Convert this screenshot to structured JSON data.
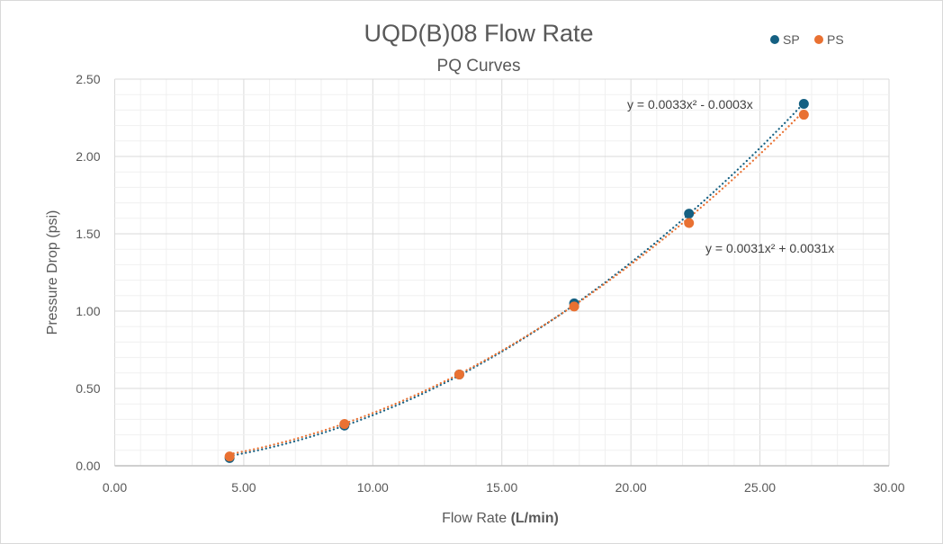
{
  "chart_data": {
    "type": "scatter",
    "title": "UQD(B)08 Flow Rate",
    "subtitle": "PQ Curves",
    "xlabel_prefix": "Flow Rate ",
    "xlabel_unit": "(L/min)",
    "ylabel": "Pressure Drop (psi)",
    "xlim": [
      0,
      30
    ],
    "ylim": [
      0,
      2.5
    ],
    "x_ticks": [
      "0.00",
      "5.00",
      "10.00",
      "15.00",
      "20.00",
      "25.00",
      "30.00"
    ],
    "y_ticks": [
      "0.00",
      "0.50",
      "1.00",
      "1.50",
      "2.00",
      "2.50"
    ],
    "x_tick_values": [
      0,
      5,
      10,
      15,
      20,
      25,
      30
    ],
    "y_tick_values": [
      0,
      0.5,
      1,
      1.5,
      2,
      2.5
    ],
    "minor_x_step": 1,
    "minor_y_step": 0.1,
    "grid": true,
    "legend_position": "top-right",
    "series": [
      {
        "name": "SP",
        "color": "#156082",
        "x": [
          4.45,
          8.9,
          13.35,
          17.8,
          22.25,
          26.7
        ],
        "y": [
          0.05,
          0.26,
          0.59,
          1.05,
          1.63,
          2.34
        ],
        "trendline": {
          "type": "polynomial",
          "a": 0.0033,
          "b": -0.0003,
          "label": "y = 0.0033x² - 0.0003x"
        }
      },
      {
        "name": "PS",
        "color": "#E97132",
        "x": [
          4.45,
          8.9,
          13.35,
          17.8,
          22.25,
          26.7
        ],
        "y": [
          0.06,
          0.27,
          0.59,
          1.03,
          1.57,
          2.27
        ],
        "trendline": {
          "type": "polynomial",
          "a": 0.0031,
          "b": 0.0031,
          "label": "y = 0.0031x² + 0.0031x"
        }
      }
    ]
  }
}
